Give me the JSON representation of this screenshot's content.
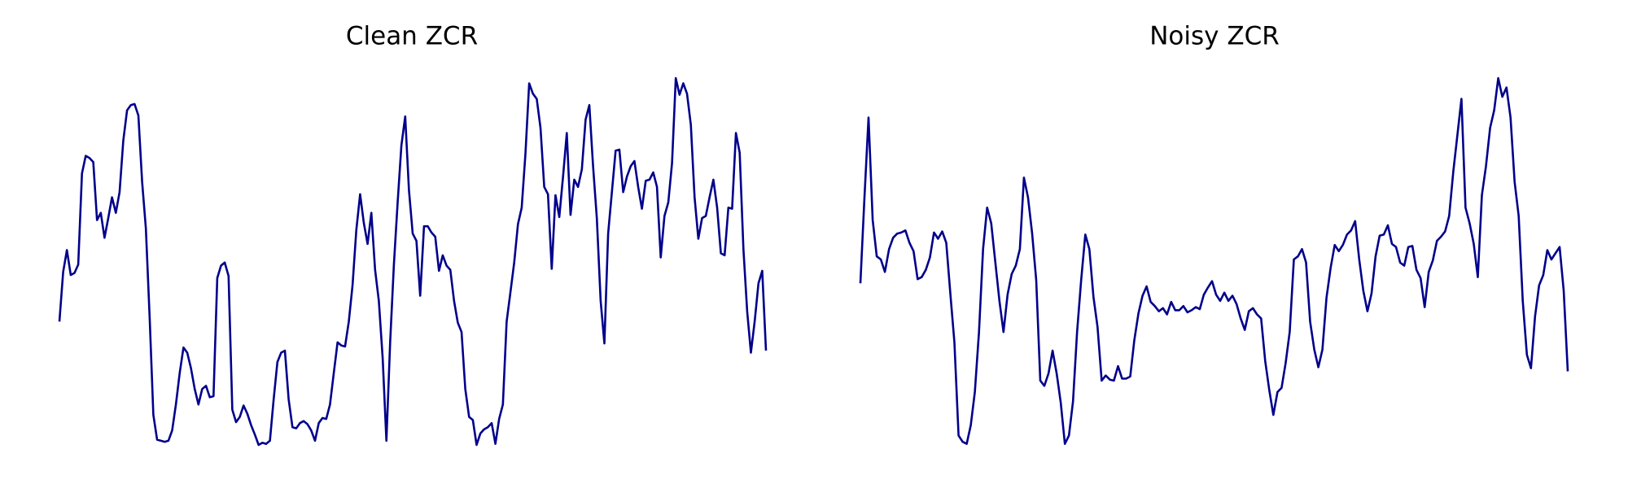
{
  "chart_data": [
    {
      "type": "line",
      "title": "Clean ZCR",
      "color": "#00008b",
      "ylim": [
        0,
        380
      ],
      "values": [
        130,
        178,
        199,
        175,
        177,
        185,
        273,
        290,
        288,
        284,
        228,
        235,
        211,
        230,
        250,
        235,
        255,
        305,
        334,
        339,
        340,
        329,
        265,
        220,
        135,
        40,
        16,
        15,
        14,
        15,
        25,
        50,
        80,
        105,
        100,
        85,
        65,
        50,
        65,
        68,
        57,
        58,
        172,
        184,
        187,
        174,
        45,
        33,
        38,
        49,
        41,
        30,
        21,
        11,
        13,
        12,
        15,
        55,
        91,
        100,
        102,
        55,
        28,
        27,
        32,
        34,
        31,
        25,
        15,
        32,
        37,
        36,
        50,
        80,
        110,
        107,
        106,
        130,
        165,
        218,
        253,
        225,
        205,
        235,
        180,
        150,
        95,
        15,
        110,
        185,
        245,
        300,
        328,
        257,
        215,
        208,
        155,
        222,
        222,
        216,
        212,
        179,
        194,
        184,
        180,
        150,
        129,
        120,
        65,
        38,
        35,
        11,
        22,
        26,
        28,
        32,
        12,
        36,
        50,
        130,
        158,
        187,
        224,
        240,
        292,
        360,
        350,
        345,
        317,
        260,
        253,
        181,
        252,
        231,
        270,
        312,
        233,
        267,
        260,
        277,
        325,
        339,
        280,
        230,
        150,
        109,
        215,
        255,
        295,
        296,
        255,
        270,
        280,
        285,
        260,
        239,
        266,
        267,
        274,
        260,
        192,
        232,
        245,
        283,
        365,
        349,
        360,
        350,
        320,
        250,
        210,
        230,
        232,
        250,
        267,
        240,
        196,
        194,
        240,
        239,
        312,
        293,
        200,
        140,
        100,
        130,
        167,
        179,
        102
      ]
    },
    {
      "type": "line",
      "title": "Noisy ZCR",
      "color": "#00008b",
      "ylim": [
        0,
        380
      ],
      "values": [
        167,
        250,
        327,
        228,
        193,
        190,
        178,
        200,
        211,
        215,
        216,
        218,
        206,
        198,
        171,
        173,
        180,
        192,
        216,
        210,
        217,
        206,
        157,
        110,
        20,
        14,
        12,
        30,
        62,
        120,
        200,
        240,
        225,
        187,
        150,
        120,
        156,
        176,
        184,
        200,
        269,
        250,
        215,
        170,
        73,
        68,
        80,
        102,
        80,
        52,
        12,
        20,
        53,
        120,
        170,
        214,
        200,
        154,
        125,
        73,
        78,
        74,
        73,
        87,
        75,
        75,
        77,
        112,
        138,
        155,
        164,
        149,
        145,
        140,
        143,
        137,
        149,
        141,
        141,
        145,
        139,
        141,
        144,
        142,
        156,
        163,
        169,
        156,
        150,
        158,
        150,
        155,
        147,
        133,
        122,
        140,
        143,
        137,
        133,
        92,
        64,
        40,
        62,
        66,
        90,
        120,
        190,
        193,
        200,
        187,
        130,
        103,
        86,
        103,
        153,
        182,
        204,
        198,
        204,
        214,
        218,
        227,
        190,
        160,
        140,
        157,
        193,
        213,
        214,
        223,
        205,
        202,
        187,
        184,
        202,
        203,
        180,
        172,
        144,
        178,
        189,
        208,
        212,
        217,
        232,
        275,
        310,
        345,
        240,
        225,
        205,
        173,
        252,
        280,
        317,
        334,
        365,
        347,
        356,
        327,
        265,
        232,
        150,
        98,
        85,
        135,
        165,
        175,
        199,
        190,
        196,
        202,
        160,
        82
      ]
    }
  ]
}
